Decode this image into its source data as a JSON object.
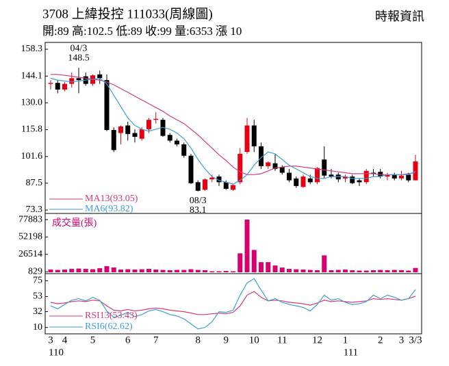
{
  "chart_data": [
    {
      "type": "candlestick",
      "title": "3708 上緯投控 111033(周線圖)",
      "subtitle": "開:89 高:102.5 低:89 收:99 量:6353 漲 10",
      "source": "時報資訊",
      "categories": [
        "3",
        null,
        "4",
        null,
        null,
        null,
        "5",
        null,
        null,
        null,
        null,
        "6",
        null,
        null,
        null,
        "7",
        null,
        null,
        null,
        null,
        null,
        "8",
        null,
        null,
        null,
        "9",
        null,
        null,
        null,
        "10",
        null,
        null,
        null,
        "11",
        null,
        null,
        null,
        null,
        "12",
        null,
        null,
        null,
        "1",
        null,
        null,
        null,
        null,
        "2",
        null,
        null,
        "3",
        null,
        "3/3"
      ],
      "year_labels": [
        "110",
        null,
        null,
        null,
        null,
        null,
        null,
        null,
        null,
        null,
        null,
        null,
        null,
        null,
        null,
        null,
        null,
        null,
        null,
        null,
        null,
        null,
        null,
        null,
        null,
        null,
        null,
        null,
        null,
        null,
        null,
        null,
        null,
        null,
        null,
        null,
        null,
        null,
        null,
        null,
        null,
        null,
        "111",
        null,
        null,
        null,
        null,
        null,
        null,
        null,
        null,
        null,
        null
      ],
      "open": [
        140,
        140.5,
        137,
        140,
        143,
        144,
        140,
        145,
        142,
        115.6,
        114,
        118,
        114,
        111,
        116,
        121,
        121,
        113,
        110,
        108,
        102,
        88,
        84,
        89.5,
        91,
        88,
        84,
        88,
        104,
        118,
        107,
        96.5,
        98,
        96,
        93,
        90,
        85.5,
        90,
        88,
        100,
        92,
        92,
        90,
        91,
        89,
        88,
        93,
        93.5,
        91,
        92,
        90,
        92,
        89
      ],
      "high": [
        142,
        142,
        141,
        146,
        148.5,
        146,
        145,
        147,
        145,
        117,
        118,
        120,
        116,
        117,
        122,
        125,
        122,
        114,
        111,
        109,
        103,
        89,
        90,
        92,
        92,
        89,
        87,
        106,
        122,
        121,
        109,
        99,
        103,
        97,
        95,
        91,
        92,
        92,
        96,
        107,
        95,
        93,
        92,
        92,
        90,
        95,
        95,
        95,
        93,
        93,
        94,
        93,
        102.5
      ],
      "low": [
        137,
        135,
        136,
        138,
        135,
        139,
        139,
        140,
        115,
        104,
        108,
        110,
        109,
        110,
        114,
        119,
        112,
        109,
        107,
        101,
        87,
        83.1,
        83.5,
        88,
        86,
        84,
        83.5,
        87,
        103,
        104,
        95,
        95,
        94,
        92,
        88,
        85,
        85,
        87,
        87,
        90,
        90,
        88,
        88,
        87,
        86,
        87,
        91,
        90,
        89,
        89,
        89,
        88,
        89
      ],
      "close": [
        140.5,
        137,
        140,
        143,
        142,
        140,
        144.5,
        143,
        115.6,
        105,
        117.5,
        113.5,
        112,
        116,
        121,
        121.5,
        112.5,
        110,
        108,
        102,
        87.5,
        83.5,
        89.5,
        90.5,
        88,
        84.5,
        86.5,
        103,
        118,
        107,
        96.5,
        98.5,
        95,
        93,
        89,
        86,
        91,
        88,
        95.5,
        91.5,
        91,
        89.5,
        91,
        87.5,
        88,
        94,
        92.5,
        91,
        92,
        90,
        91.5,
        89,
        99
      ],
      "up_color": "#e60012",
      "down_color": "#000000",
      "series": [
        {
          "name": "MA13(93.05)",
          "color": "#d23a7c",
          "values": [
            145,
            145,
            144.5,
            144,
            143.5,
            143,
            142.5,
            142,
            141,
            139.5,
            137.5,
            135.5,
            133.5,
            131.5,
            129.5,
            127.5,
            125.5,
            123,
            121,
            119,
            116,
            113,
            109.5,
            106,
            102.5,
            99.5,
            96,
            93.5,
            92,
            92,
            92.5,
            94,
            95.5,
            96,
            96.5,
            96.5,
            96,
            95.5,
            95,
            94.5,
            94,
            93.5,
            93,
            92.5,
            92.5,
            92.5,
            92.5,
            92,
            92,
            92,
            92,
            92.5,
            93.05
          ]
        },
        {
          "name": "MA6(93.82)",
          "color": "#3a9ed6",
          "values": [
            143,
            142,
            141.5,
            141,
            141.5,
            142,
            142.5,
            143,
            140,
            134,
            128,
            122,
            118,
            116,
            115,
            116,
            117,
            116,
            114,
            111,
            106,
            100,
            95,
            91,
            89,
            88,
            87,
            89,
            92,
            97,
            101,
            104,
            103,
            100,
            97,
            95,
            93,
            91,
            90,
            90,
            91,
            91,
            91,
            90,
            90,
            90,
            91,
            91,
            92,
            92,
            92,
            92,
            93.82
          ]
        }
      ],
      "ylim": [
        73.3,
        158.3
      ],
      "yticks": [
        158.3,
        144.1,
        {
          "value": 130,
          "label": "130.0"
        },
        115.8,
        101.6,
        87.5,
        73.3
      ],
      "annotations": [
        {
          "label": "04/3",
          "value": 148.5
        },
        {
          "label": "08/3",
          "value": 83.1
        }
      ]
    },
    {
      "type": "bar",
      "title": "成交量(張)",
      "color": "#d6006e",
      "values": [
        4000,
        3500,
        4000,
        5000,
        5500,
        5000,
        4500,
        6000,
        9000,
        7000,
        4000,
        4500,
        4000,
        4500,
        5000,
        4000,
        3500,
        3000,
        3500,
        3500,
        4500,
        3500,
        3000,
        1500,
        1500,
        2000,
        1500,
        28000,
        77883,
        33000,
        15000,
        15000,
        10000,
        7000,
        5000,
        4500,
        4000,
        3500,
        3000,
        25000,
        3000,
        3500,
        4000,
        3000,
        2500,
        2500,
        3000,
        3500,
        3000,
        3500,
        3000,
        2500,
        6353
      ],
      "ylim": [
        0,
        85000
      ],
      "yticks": [
        77883,
        52198,
        26514,
        829
      ]
    },
    {
      "type": "line",
      "series": [
        {
          "name": "RSI13(53.43)",
          "color": "#d23a7c",
          "values": [
            45,
            43,
            44,
            46,
            47,
            46,
            48,
            47,
            40,
            34,
            33,
            35,
            33,
            34,
            36,
            37,
            36,
            34,
            33,
            32,
            30,
            28,
            28,
            29,
            30,
            29,
            31,
            40,
            55,
            60,
            52,
            47,
            48,
            47,
            45,
            44,
            43,
            41,
            44,
            48,
            46,
            47,
            46,
            45,
            46,
            47,
            50,
            49,
            50,
            49,
            48,
            50,
            53.43
          ]
        },
        {
          "name": "RSI6(62.62)",
          "color": "#3a9ed6",
          "values": [
            40,
            36,
            42,
            48,
            50,
            47,
            52,
            48,
            33,
            24,
            27,
            31,
            25,
            28,
            33,
            35,
            32,
            28,
            26,
            22,
            15,
            8,
            10,
            18,
            32,
            31,
            34,
            55,
            72,
            78,
            62,
            47,
            50,
            45,
            42,
            40,
            38,
            33,
            42,
            55,
            48,
            50,
            45,
            42,
            43,
            46,
            55,
            50,
            55,
            52,
            48,
            50,
            62.62
          ]
        }
      ],
      "ylim": [
        3,
        83
      ],
      "yticks": [
        75,
        53,
        32,
        10
      ]
    }
  ]
}
